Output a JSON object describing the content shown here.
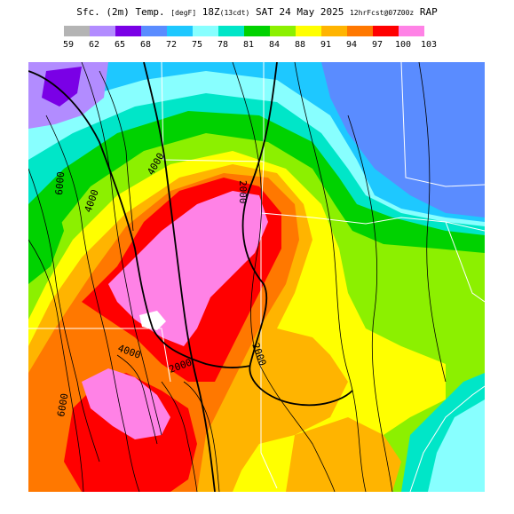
{
  "header": {
    "title_main": "Sfc. (2m) Temp.",
    "title_units": "[degF]",
    "title_time": "18Z",
    "title_local": "(13cdt)",
    "title_date": "SAT 24 May 2025",
    "title_fcst": "12hrFcst@07Z",
    "title_init": "00z",
    "title_model": "RAP"
  },
  "legend": {
    "colors": [
      "#b4b4b4",
      "#b28cff",
      "#7a00e6",
      "#5a8cff",
      "#1ec8ff",
      "#88ffff",
      "#00e6c8",
      "#00d200",
      "#8cf000",
      "#ffff00",
      "#ffb400",
      "#ff7800",
      "#ff0000",
      "#ff82e6",
      "#ffffff"
    ],
    "labels": [
      "59",
      "62",
      "65",
      "68",
      "72",
      "75",
      "78",
      "81",
      "84",
      "88",
      "91",
      "94",
      "97",
      "100",
      "103"
    ]
  },
  "map": {
    "contour_labels": [
      "2000",
      "2000",
      "2000",
      "4000",
      "4000",
      "4000",
      "6000",
      "6000"
    ]
  }
}
